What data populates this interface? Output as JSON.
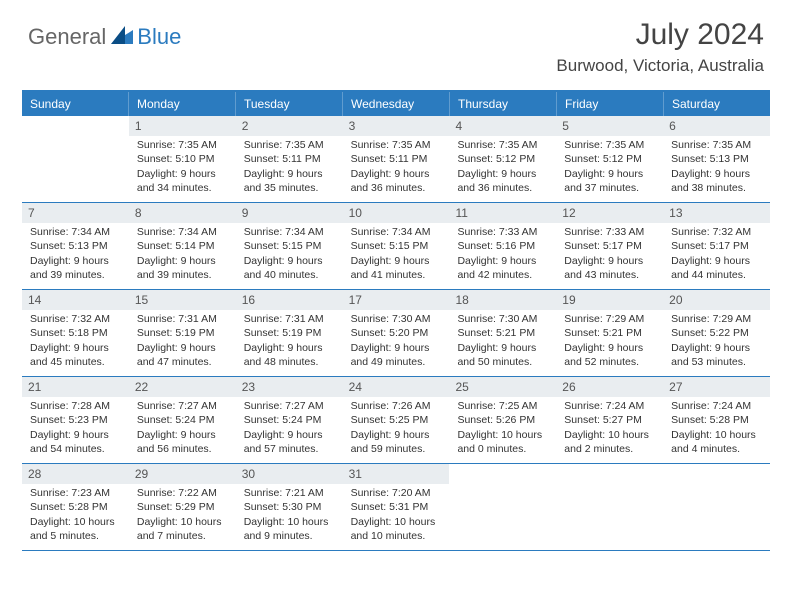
{
  "logo": {
    "part1": "General",
    "part2": "Blue"
  },
  "title": "July 2024",
  "location": "Burwood, Victoria, Australia",
  "accent_color": "#2b7bbf",
  "daynum_bg": "#e9edf0",
  "dow": [
    "Sunday",
    "Monday",
    "Tuesday",
    "Wednesday",
    "Thursday",
    "Friday",
    "Saturday"
  ],
  "weeks": [
    [
      null,
      {
        "n": "1",
        "sr": "7:35 AM",
        "ss": "5:10 PM",
        "dl": "9 hours and 34 minutes."
      },
      {
        "n": "2",
        "sr": "7:35 AM",
        "ss": "5:11 PM",
        "dl": "9 hours and 35 minutes."
      },
      {
        "n": "3",
        "sr": "7:35 AM",
        "ss": "5:11 PM",
        "dl": "9 hours and 36 minutes."
      },
      {
        "n": "4",
        "sr": "7:35 AM",
        "ss": "5:12 PM",
        "dl": "9 hours and 36 minutes."
      },
      {
        "n": "5",
        "sr": "7:35 AM",
        "ss": "5:12 PM",
        "dl": "9 hours and 37 minutes."
      },
      {
        "n": "6",
        "sr": "7:35 AM",
        "ss": "5:13 PM",
        "dl": "9 hours and 38 minutes."
      }
    ],
    [
      {
        "n": "7",
        "sr": "7:34 AM",
        "ss": "5:13 PM",
        "dl": "9 hours and 39 minutes."
      },
      {
        "n": "8",
        "sr": "7:34 AM",
        "ss": "5:14 PM",
        "dl": "9 hours and 39 minutes."
      },
      {
        "n": "9",
        "sr": "7:34 AM",
        "ss": "5:15 PM",
        "dl": "9 hours and 40 minutes."
      },
      {
        "n": "10",
        "sr": "7:34 AM",
        "ss": "5:15 PM",
        "dl": "9 hours and 41 minutes."
      },
      {
        "n": "11",
        "sr": "7:33 AM",
        "ss": "5:16 PM",
        "dl": "9 hours and 42 minutes."
      },
      {
        "n": "12",
        "sr": "7:33 AM",
        "ss": "5:17 PM",
        "dl": "9 hours and 43 minutes."
      },
      {
        "n": "13",
        "sr": "7:32 AM",
        "ss": "5:17 PM",
        "dl": "9 hours and 44 minutes."
      }
    ],
    [
      {
        "n": "14",
        "sr": "7:32 AM",
        "ss": "5:18 PM",
        "dl": "9 hours and 45 minutes."
      },
      {
        "n": "15",
        "sr": "7:31 AM",
        "ss": "5:19 PM",
        "dl": "9 hours and 47 minutes."
      },
      {
        "n": "16",
        "sr": "7:31 AM",
        "ss": "5:19 PM",
        "dl": "9 hours and 48 minutes."
      },
      {
        "n": "17",
        "sr": "7:30 AM",
        "ss": "5:20 PM",
        "dl": "9 hours and 49 minutes."
      },
      {
        "n": "18",
        "sr": "7:30 AM",
        "ss": "5:21 PM",
        "dl": "9 hours and 50 minutes."
      },
      {
        "n": "19",
        "sr": "7:29 AM",
        "ss": "5:21 PM",
        "dl": "9 hours and 52 minutes."
      },
      {
        "n": "20",
        "sr": "7:29 AM",
        "ss": "5:22 PM",
        "dl": "9 hours and 53 minutes."
      }
    ],
    [
      {
        "n": "21",
        "sr": "7:28 AM",
        "ss": "5:23 PM",
        "dl": "9 hours and 54 minutes."
      },
      {
        "n": "22",
        "sr": "7:27 AM",
        "ss": "5:24 PM",
        "dl": "9 hours and 56 minutes."
      },
      {
        "n": "23",
        "sr": "7:27 AM",
        "ss": "5:24 PM",
        "dl": "9 hours and 57 minutes."
      },
      {
        "n": "24",
        "sr": "7:26 AM",
        "ss": "5:25 PM",
        "dl": "9 hours and 59 minutes."
      },
      {
        "n": "25",
        "sr": "7:25 AM",
        "ss": "5:26 PM",
        "dl": "10 hours and 0 minutes."
      },
      {
        "n": "26",
        "sr": "7:24 AM",
        "ss": "5:27 PM",
        "dl": "10 hours and 2 minutes."
      },
      {
        "n": "27",
        "sr": "7:24 AM",
        "ss": "5:28 PM",
        "dl": "10 hours and 4 minutes."
      }
    ],
    [
      {
        "n": "28",
        "sr": "7:23 AM",
        "ss": "5:28 PM",
        "dl": "10 hours and 5 minutes."
      },
      {
        "n": "29",
        "sr": "7:22 AM",
        "ss": "5:29 PM",
        "dl": "10 hours and 7 minutes."
      },
      {
        "n": "30",
        "sr": "7:21 AM",
        "ss": "5:30 PM",
        "dl": "10 hours and 9 minutes."
      },
      {
        "n": "31",
        "sr": "7:20 AM",
        "ss": "5:31 PM",
        "dl": "10 hours and 10 minutes."
      },
      null,
      null,
      null
    ]
  ],
  "labels": {
    "sunrise": "Sunrise: ",
    "sunset": "Sunset: ",
    "daylight": "Daylight: "
  }
}
